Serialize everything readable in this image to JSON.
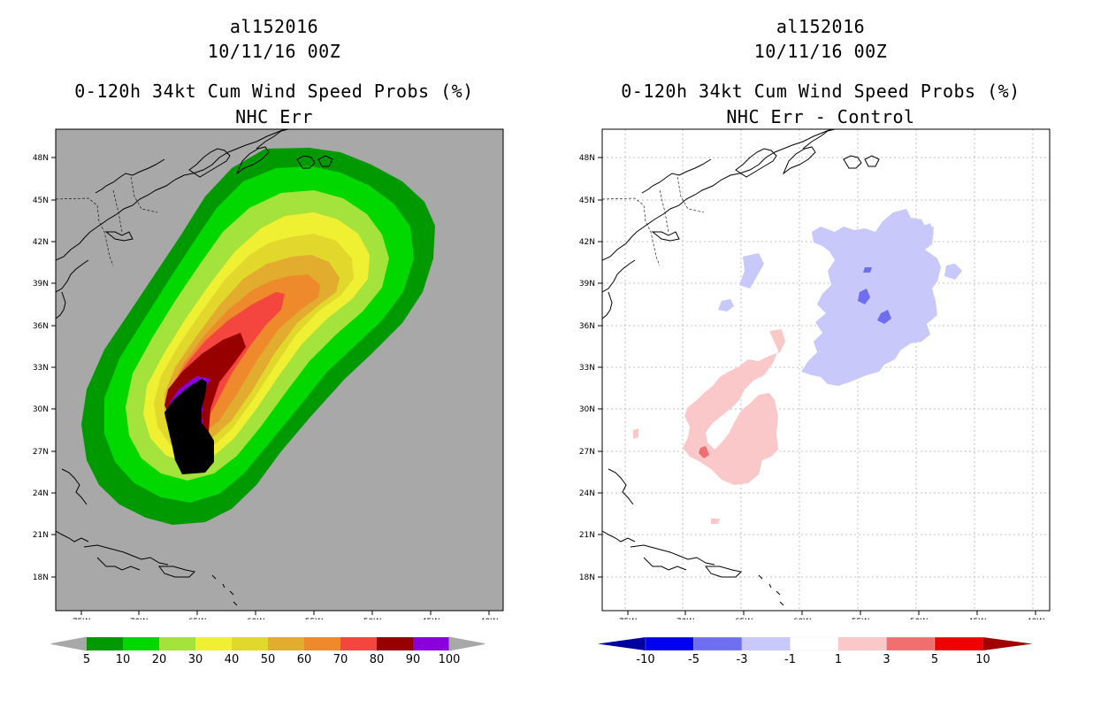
{
  "left": {
    "storm_id": "al152016",
    "date": "10/11/16 00Z",
    "product": "0-120h 34kt Cum Wind Speed Probs (%)",
    "subtitle": "NHC Err",
    "background_color": "#a8a8a8",
    "legend": {
      "labels": [
        "5",
        "10",
        "20",
        "30",
        "40",
        "50",
        "60",
        "70",
        "80",
        "90",
        "100"
      ],
      "colors": [
        "#009a00",
        "#00d800",
        "#a4e23c",
        "#f0f032",
        "#e2d82c",
        "#e2ac2e",
        "#ee8a2c",
        "#f4463e",
        "#980000",
        "#8a00dc"
      ],
      "end_color": "#a8a8a8"
    }
  },
  "right": {
    "storm_id": "al152016",
    "date": "10/11/16 00Z",
    "product": "0-120h 34kt Cum Wind Speed Probs (%)",
    "subtitle": "NHC Err - Control",
    "background_color": "#ffffff",
    "legend": {
      "labels": [
        "-10",
        "-5",
        "-3",
        "-1",
        "1",
        "3",
        "5",
        "10"
      ],
      "colors": [
        "#0000a0",
        "#0000f0",
        "#6e6ef0",
        "#c8c8fa",
        "#ffffff",
        "#fac8c8",
        "#f06e6e",
        "#f00000",
        "#a00000"
      ]
    }
  },
  "axes": {
    "lon_labels": [
      "75W",
      "70W",
      "65W",
      "60W",
      "55W",
      "50W",
      "45W",
      "40W"
    ],
    "lat_labels": [
      "48N",
      "45N",
      "42N",
      "39N",
      "36N",
      "33N",
      "30N",
      "27N",
      "24N",
      "21N",
      "18N"
    ]
  }
}
